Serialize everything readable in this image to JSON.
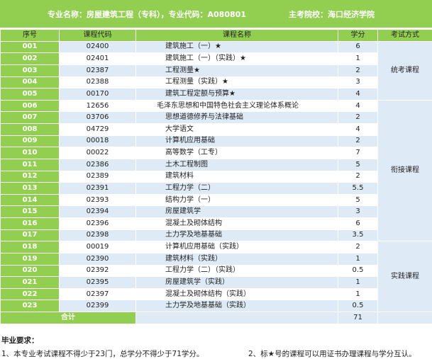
{
  "header": {
    "major_label": "专业名称：房屋建筑工程（专科），专业代码：A080801",
    "school_label": "主考院校：海口经济学院"
  },
  "table": {
    "columns": [
      "序号",
      "课程代码",
      "课程名称",
      "学分",
      "考试方式"
    ],
    "rows": [
      {
        "seq": "001",
        "code": "02400",
        "name": "建筑施工（一）★",
        "credit": "6"
      },
      {
        "seq": "002",
        "code": "02401",
        "name": "建筑施工（一）（实践）★",
        "credit": "1"
      },
      {
        "seq": "003",
        "code": "02387",
        "name": "工程测量★",
        "credit": "2"
      },
      {
        "seq": "004",
        "code": "02388",
        "name": "工程测量（实践）★",
        "credit": "3"
      },
      {
        "seq": "005",
        "code": "00170",
        "name": "建筑工程定额与预算★",
        "credit": "4"
      },
      {
        "seq": "006",
        "code": "12656",
        "name": "毛泽东思想和中国特色社会主义理论体系概论",
        "credit": "4"
      },
      {
        "seq": "007",
        "code": "03706",
        "name": "思想道德修养与法律基础",
        "credit": "2"
      },
      {
        "seq": "008",
        "code": "04729",
        "name": "大学语文",
        "credit": "4"
      },
      {
        "seq": "009",
        "code": "00018",
        "name": "计算机应用基础",
        "credit": "2"
      },
      {
        "seq": "010",
        "code": "00022",
        "name": "高等数学（工专）",
        "credit": "7"
      },
      {
        "seq": "011",
        "code": "02386",
        "name": "土木工程制图",
        "credit": "5"
      },
      {
        "seq": "012",
        "code": "02389",
        "name": "建筑材料",
        "credit": "2"
      },
      {
        "seq": "013",
        "code": "02391",
        "name": "工程力学（二）",
        "credit": "5.5"
      },
      {
        "seq": "014",
        "code": "02393",
        "name": "结构力学（一）",
        "credit": "5"
      },
      {
        "seq": "015",
        "code": "02394",
        "name": "房屋建筑学",
        "credit": "3"
      },
      {
        "seq": "016",
        "code": "02396",
        "name": "混凝土及砌体结构",
        "credit": "6"
      },
      {
        "seq": "017",
        "code": "02398",
        "name": "土力学及地基基础",
        "credit": "3.5"
      },
      {
        "seq": "018",
        "code": "00019",
        "name": "计算机应用基础（实践）",
        "credit": "2"
      },
      {
        "seq": "019",
        "code": "02390",
        "name": "建筑材料（实践）",
        "credit": "1"
      },
      {
        "seq": "020",
        "code": "02392",
        "name": "工程力学（二）（实践）",
        "credit": "0.5"
      },
      {
        "seq": "021",
        "code": "02395",
        "name": "房屋建筑学（实践）",
        "credit": "1"
      },
      {
        "seq": "022",
        "code": "02397",
        "name": "混凝土及砌体结构（实践）",
        "credit": "1"
      },
      {
        "seq": "023",
        "code": "02399",
        "name": "土力学及地基基础（实践）",
        "credit": "0.5"
      }
    ],
    "methods": [
      "统考课程",
      "衔接课程",
      "实践课程"
    ],
    "total_label": "合计",
    "total_credit": "71"
  },
  "requirements": {
    "title": "毕业要求：",
    "item1": "1、本专业考试课程不得少于23门，总学分不得少于71学分。",
    "item2": "2、标★号的课程可以用证书办理课程与学分互认。"
  },
  "colors": {
    "header_green": "#92cf50",
    "row_blue": "#deebf7"
  }
}
